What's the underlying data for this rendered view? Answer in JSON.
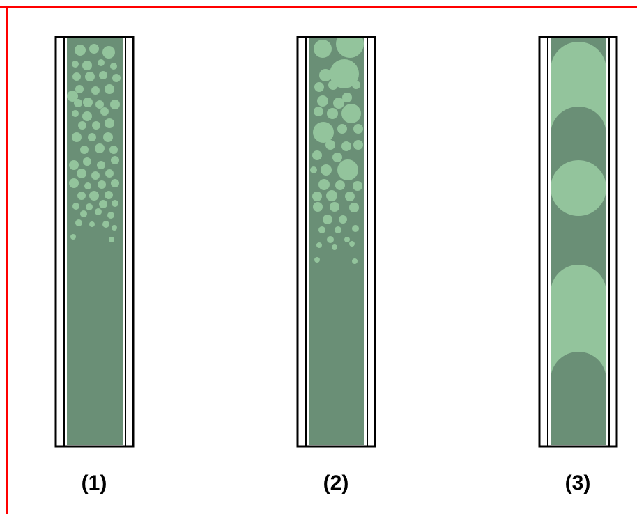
{
  "colors": {
    "frame": "#ff0000",
    "liquid": "#6a8f76",
    "bubble": "#93c49c",
    "outline": "#000000",
    "wall": "#ffffff"
  },
  "tubes": [
    {
      "label": "(1)",
      "regime": "bubbly-fine"
    },
    {
      "label": "(2)",
      "regime": "bubbly-coarse"
    },
    {
      "label": "(3)",
      "regime": "slug"
    }
  ]
}
